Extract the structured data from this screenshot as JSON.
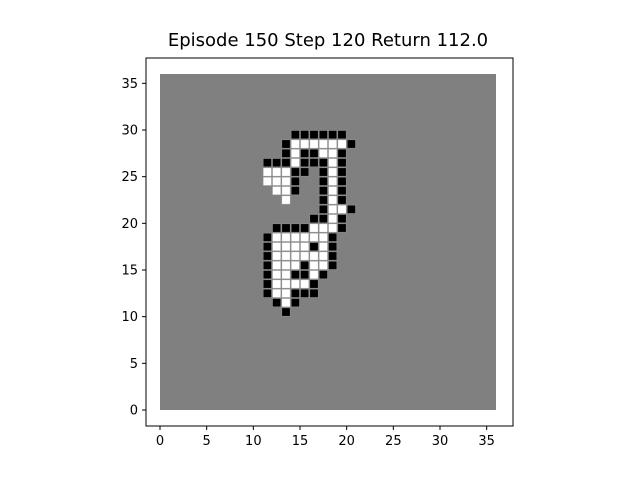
{
  "title": "Episode 150 Step 120 Return 112.0",
  "colors": {
    "background": "#808080",
    "white_cell": "#ffffff",
    "black_cell": "#000000",
    "axis": "#000000"
  },
  "grid": {
    "xlim": [
      0,
      36
    ],
    "ylim": [
      0,
      36
    ],
    "xticks": [
      0,
      5,
      10,
      15,
      20,
      25,
      30,
      35
    ],
    "yticks": [
      0,
      5,
      10,
      15,
      20,
      25,
      30,
      35
    ],
    "rows": [
      {
        "y": 29,
        "cells": [
          [
            14,
            "b"
          ],
          [
            15,
            "b"
          ],
          [
            16,
            "b"
          ],
          [
            17,
            "b"
          ],
          [
            18,
            "b"
          ],
          [
            19,
            "b"
          ]
        ]
      },
      {
        "y": 28,
        "cells": [
          [
            13,
            "b"
          ],
          [
            14,
            "w"
          ],
          [
            15,
            "w"
          ],
          [
            16,
            "w"
          ],
          [
            17,
            "w"
          ],
          [
            18,
            "w"
          ],
          [
            19,
            "w"
          ],
          [
            20,
            "b"
          ]
        ]
      },
      {
        "y": 27,
        "cells": [
          [
            13,
            "b"
          ],
          [
            14,
            "w"
          ],
          [
            15,
            "b"
          ],
          [
            16,
            "b"
          ],
          [
            17,
            "w"
          ],
          [
            18,
            "w"
          ],
          [
            19,
            "b"
          ]
        ]
      },
      {
        "y": 26,
        "cells": [
          [
            11,
            "b"
          ],
          [
            12,
            "b"
          ],
          [
            13,
            "b"
          ],
          [
            14,
            "w"
          ],
          [
            15,
            "b"
          ],
          [
            16,
            "b"
          ],
          [
            17,
            "b"
          ],
          [
            18,
            "w"
          ],
          [
            19,
            "b"
          ]
        ]
      },
      {
        "y": 25,
        "cells": [
          [
            11,
            "w"
          ],
          [
            12,
            "w"
          ],
          [
            13,
            "w"
          ],
          [
            14,
            "b"
          ],
          [
            15,
            "b"
          ],
          [
            17,
            "b"
          ],
          [
            18,
            "w"
          ],
          [
            19,
            "b"
          ]
        ]
      },
      {
        "y": 24,
        "cells": [
          [
            11,
            "w"
          ],
          [
            12,
            "w"
          ],
          [
            13,
            "w"
          ],
          [
            14,
            "b"
          ],
          [
            17,
            "b"
          ],
          [
            18,
            "w"
          ],
          [
            19,
            "b"
          ]
        ]
      },
      {
        "y": 23,
        "cells": [
          [
            12,
            "w"
          ],
          [
            13,
            "w"
          ],
          [
            14,
            "b"
          ],
          [
            17,
            "b"
          ],
          [
            18,
            "w"
          ],
          [
            19,
            "b"
          ]
        ]
      },
      {
        "y": 22,
        "cells": [
          [
            13,
            "w"
          ],
          [
            17,
            "b"
          ],
          [
            18,
            "w"
          ],
          [
            19,
            "b"
          ]
        ]
      },
      {
        "y": 21,
        "cells": [
          [
            17,
            "b"
          ],
          [
            18,
            "w"
          ],
          [
            19,
            "w"
          ],
          [
            20,
            "b"
          ]
        ]
      },
      {
        "y": 20,
        "cells": [
          [
            16,
            "b"
          ],
          [
            17,
            "b"
          ],
          [
            18,
            "w"
          ],
          [
            19,
            "b"
          ]
        ]
      },
      {
        "y": 19,
        "cells": [
          [
            12,
            "b"
          ],
          [
            13,
            "b"
          ],
          [
            14,
            "b"
          ],
          [
            15,
            "b"
          ],
          [
            16,
            "w"
          ],
          [
            17,
            "w"
          ],
          [
            18,
            "w"
          ],
          [
            19,
            "b"
          ]
        ]
      },
      {
        "y": 18,
        "cells": [
          [
            11,
            "b"
          ],
          [
            12,
            "w"
          ],
          [
            13,
            "w"
          ],
          [
            14,
            "w"
          ],
          [
            15,
            "w"
          ],
          [
            16,
            "w"
          ],
          [
            17,
            "w"
          ],
          [
            18,
            "b"
          ]
        ]
      },
      {
        "y": 17,
        "cells": [
          [
            11,
            "b"
          ],
          [
            12,
            "w"
          ],
          [
            13,
            "w"
          ],
          [
            14,
            "w"
          ],
          [
            15,
            "w"
          ],
          [
            16,
            "b"
          ],
          [
            17,
            "w"
          ],
          [
            18,
            "b"
          ]
        ]
      },
      {
        "y": 16,
        "cells": [
          [
            11,
            "b"
          ],
          [
            12,
            "w"
          ],
          [
            13,
            "w"
          ],
          [
            14,
            "w"
          ],
          [
            15,
            "w"
          ],
          [
            16,
            "w"
          ],
          [
            17,
            "w"
          ],
          [
            18,
            "b"
          ]
        ]
      },
      {
        "y": 15,
        "cells": [
          [
            11,
            "b"
          ],
          [
            12,
            "w"
          ],
          [
            13,
            "w"
          ],
          [
            14,
            "w"
          ],
          [
            15,
            "b"
          ],
          [
            16,
            "w"
          ],
          [
            17,
            "w"
          ],
          [
            18,
            "b"
          ]
        ]
      },
      {
        "y": 14,
        "cells": [
          [
            11,
            "b"
          ],
          [
            12,
            "w"
          ],
          [
            13,
            "w"
          ],
          [
            14,
            "b"
          ],
          [
            15,
            "b"
          ],
          [
            16,
            "w"
          ],
          [
            17,
            "b"
          ]
        ]
      },
      {
        "y": 13,
        "cells": [
          [
            11,
            "b"
          ],
          [
            12,
            "w"
          ],
          [
            13,
            "w"
          ],
          [
            14,
            "w"
          ],
          [
            15,
            "w"
          ],
          [
            16,
            "b"
          ]
        ]
      },
      {
        "y": 12,
        "cells": [
          [
            11,
            "b"
          ],
          [
            12,
            "w"
          ],
          [
            13,
            "w"
          ],
          [
            14,
            "b"
          ],
          [
            15,
            "b"
          ],
          [
            16,
            "b"
          ]
        ]
      },
      {
        "y": 11,
        "cells": [
          [
            12,
            "b"
          ],
          [
            13,
            "w"
          ],
          [
            14,
            "b"
          ]
        ]
      },
      {
        "y": 10,
        "cells": [
          [
            13,
            "b"
          ]
        ]
      }
    ]
  }
}
